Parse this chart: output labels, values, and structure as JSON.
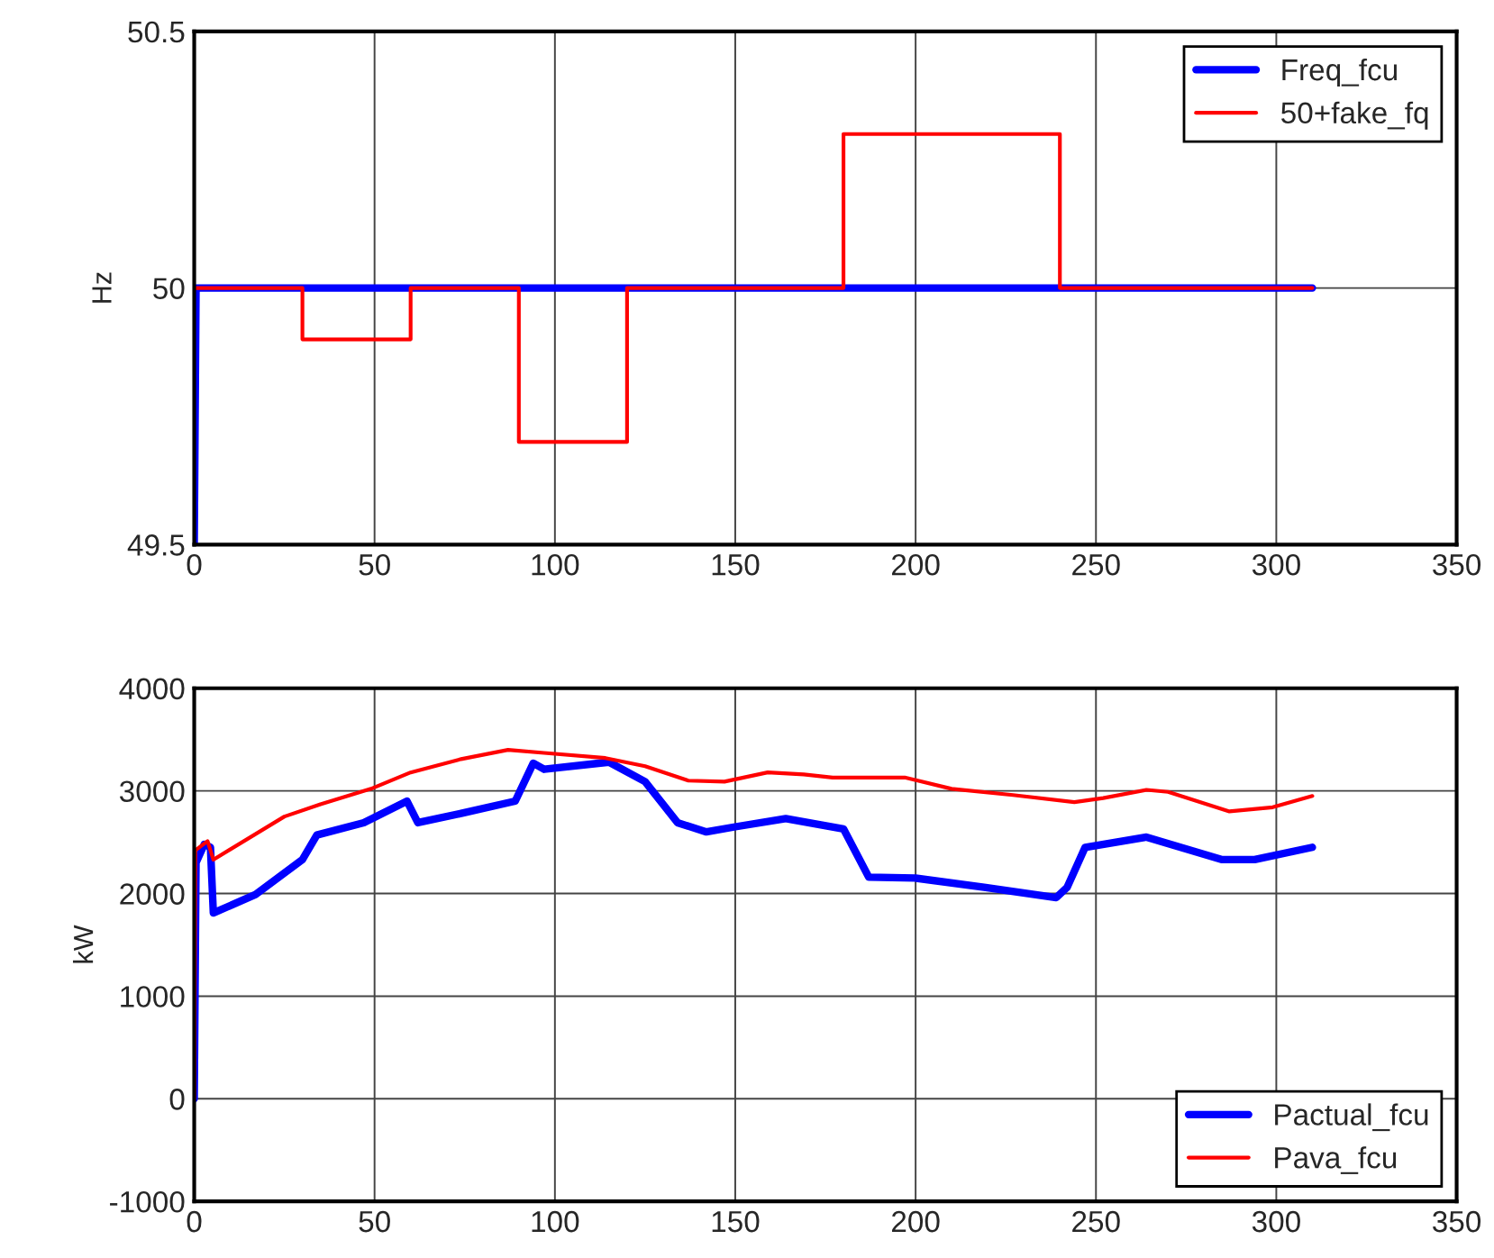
{
  "chart_data": [
    {
      "type": "line",
      "ylabel": "Hz",
      "xlim": [
        0,
        350
      ],
      "xticks": [
        0,
        50,
        100,
        150,
        200,
        250,
        300,
        350
      ],
      "ylim": [
        49.5,
        50.5
      ],
      "yticks": [
        49.5,
        50,
        50.5
      ],
      "grid": true,
      "legend": "top right",
      "series": [
        {
          "name": "Freq_fcu",
          "color": "#0000ff",
          "x": [
            0,
            0.5,
            310
          ],
          "values": [
            49.5,
            50,
            50
          ]
        },
        {
          "name": "50+fake_fq",
          "color": "#ff0000",
          "x": [
            0,
            30,
            30,
            60,
            60,
            90,
            90,
            120,
            120,
            180,
            180,
            240,
            240,
            310
          ],
          "values": [
            50,
            50,
            49.9,
            49.9,
            50,
            50,
            49.7,
            49.7,
            50,
            50,
            50.3,
            50.3,
            50,
            50
          ]
        }
      ]
    },
    {
      "type": "line",
      "ylabel": "kW",
      "xlim": [
        0,
        350
      ],
      "xticks": [
        0,
        50,
        100,
        150,
        200,
        250,
        300,
        350
      ],
      "ylim": [
        -1000,
        4000
      ],
      "yticks": [
        -1000,
        0,
        1000,
        2000,
        3000,
        4000
      ],
      "grid": true,
      "legend": "bottom right",
      "series": [
        {
          "name": "Pactual_fcu",
          "color": "#0000ff",
          "x": [
            0,
            0.5,
            2.8,
            4.5,
            5.3,
            17,
            30,
            34,
            47,
            59,
            62,
            74,
            89,
            94,
            97,
            115,
            125,
            134,
            142,
            150,
            164,
            180,
            187,
            200,
            219,
            239,
            242,
            247,
            264,
            285,
            294,
            310
          ],
          "values": [
            0,
            2300,
            2480,
            2450,
            1810,
            1990,
            2330,
            2570,
            2690,
            2900,
            2690,
            2780,
            2900,
            3270,
            3210,
            3280,
            3090,
            2690,
            2600,
            2650,
            2730,
            2630,
            2160,
            2150,
            2060,
            1960,
            2060,
            2450,
            2550,
            2330,
            2330,
            2450
          ]
        },
        {
          "name": "Pava_fcu",
          "color": "#ff0000",
          "x": [
            0,
            0.3,
            3.7,
            5.3,
            25,
            35,
            49,
            60,
            74,
            87,
            97,
            114,
            125,
            137,
            147,
            159,
            169,
            177,
            197,
            210,
            227,
            244,
            252,
            264,
            270,
            287,
            299,
            310
          ],
          "values": [
            0,
            2420,
            2510,
            2330,
            2750,
            2870,
            3020,
            3180,
            3310,
            3400,
            3370,
            3320,
            3240,
            3100,
            3090,
            3180,
            3160,
            3130,
            3130,
            3020,
            2960,
            2890,
            2930,
            3010,
            2990,
            2800,
            2840,
            2950
          ]
        }
      ]
    }
  ]
}
